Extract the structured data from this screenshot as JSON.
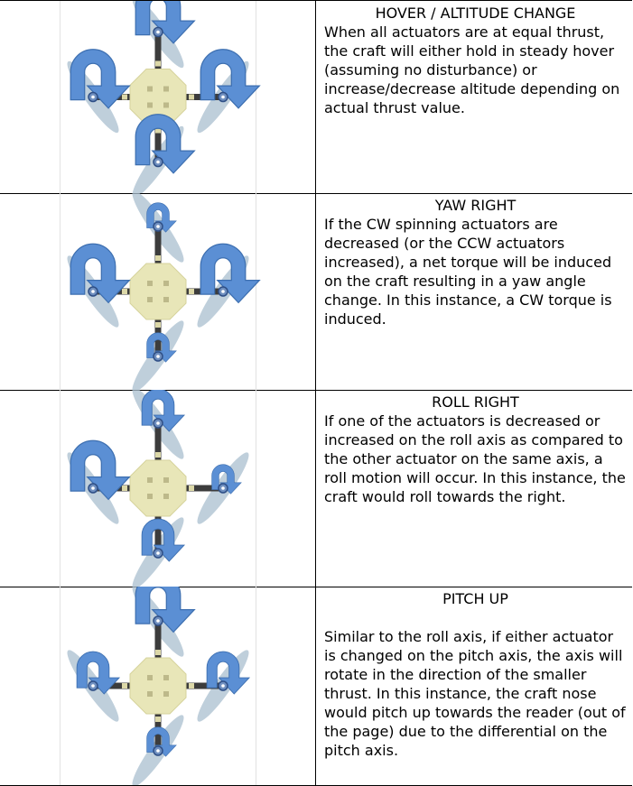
{
  "colors": {
    "arrow": "#5b8fd4",
    "arrow_edge": "#3d6fb0",
    "blade": "#a9bfcf",
    "frame_arm": "#3c3c3c",
    "body": "#e8e6b8"
  },
  "rows": [
    {
      "title": "HOVER / ALTITUDE CHANGE",
      "text": "When all actuators are at equal thrust, the craft will either hold in steady hover (assuming no disturbance) or increase/decrease altitude depending on actual thrust value.",
      "thrust": {
        "north": "large",
        "east": "large",
        "south": "large",
        "west": "large"
      }
    },
    {
      "title": "YAW RIGHT",
      "text": "If the CW spinning actuators are decreased (or the CCW actuators increased), a net torque will be induced on the craft resulting in a yaw angle change. In this instance, a CW torque is induced.",
      "thrust": {
        "north": "small",
        "east": "large",
        "south": "small",
        "west": "large"
      }
    },
    {
      "title": "ROLL RIGHT",
      "text": "If one of the actuators is decreased or increased on the roll axis as compared to the other actuator on the same axis, a roll motion will occur. In this instance, the craft would roll towards the right.",
      "thrust": {
        "north": "medium",
        "east": "small",
        "south": "medium",
        "west": "large"
      }
    },
    {
      "title": "PITCH UP",
      "text": "Similar to the roll axis, if either actuator is changed on the pitch axis, the axis will rotate in the direction of the smaller thrust. In this instance, the craft nose would pitch up towards the reader (out of the page) due to the differential on the pitch axis.",
      "thrust": {
        "north": "large",
        "east": "medium",
        "south": "small",
        "west": "medium"
      }
    }
  ]
}
